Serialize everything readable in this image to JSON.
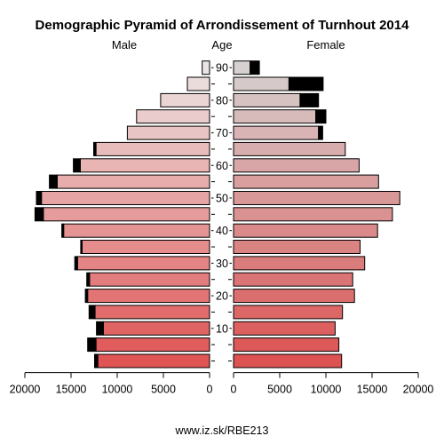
{
  "chart_data": {
    "type": "bar",
    "title": "Demographic Pyramid of Arrondissement of Turnhout 2014",
    "left_label": "Male",
    "center_label": "Age",
    "right_label": "Female",
    "source": "www.iz.sk/RBE213",
    "age_ticks": [
      "10",
      "20",
      "30",
      "40",
      "50",
      "60",
      "70",
      "80",
      "90"
    ],
    "x_ticks_left": [
      "20000",
      "15000",
      "10000",
      "5000",
      "0"
    ],
    "x_ticks_right": [
      "0",
      "5000",
      "10000",
      "15000",
      "20000"
    ],
    "xlim": [
      0,
      20000
    ],
    "age_groups": [
      "0-4",
      "5-9",
      "10-14",
      "15-19",
      "20-24",
      "25-29",
      "30-34",
      "35-39",
      "40-44",
      "45-49",
      "50-54",
      "55-59",
      "60-64",
      "65-69",
      "70-74",
      "75-79",
      "80-84",
      "85-89",
      "90+"
    ],
    "series": [
      {
        "name": "Male",
        "values": [
          12100,
          12300,
          11500,
          12400,
          13200,
          13000,
          14300,
          13800,
          15800,
          18000,
          18200,
          16500,
          14000,
          12300,
          8900,
          7900,
          5300,
          2400,
          800
        ],
        "dark_values": [
          350,
          900,
          750,
          650,
          250,
          300,
          300,
          150,
          200,
          900,
          550,
          850,
          750,
          250,
          0,
          0,
          0,
          0,
          0
        ]
      },
      {
        "name": "Female",
        "values": [
          11700,
          11400,
          11000,
          11800,
          13100,
          12900,
          14200,
          13700,
          15600,
          17200,
          18000,
          15700,
          13600,
          12100,
          9200,
          8900,
          7200,
          6000,
          1800
        ],
        "dark_values": [
          0,
          0,
          0,
          0,
          0,
          0,
          0,
          0,
          0,
          0,
          0,
          0,
          0,
          0,
          450,
          1100,
          2000,
          3700,
          1000
        ]
      }
    ]
  }
}
